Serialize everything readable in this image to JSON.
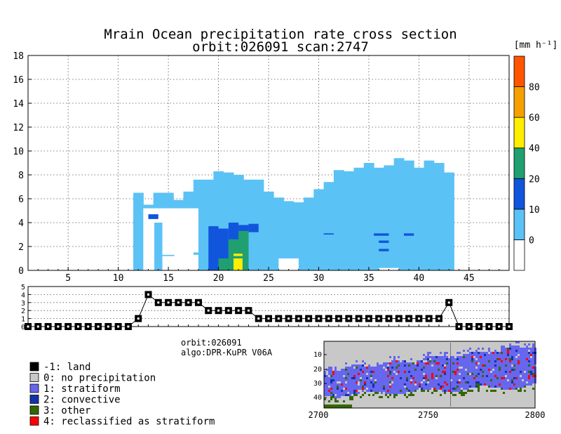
{
  "chart_data": [
    {
      "type": "heatmap",
      "title": "Mrain Ocean precipitation rate cross section",
      "subtitle": "orbit:026091     scan:2747",
      "xlim": [
        1,
        49
      ],
      "ylim": [
        0,
        18
      ],
      "xticks": [
        5,
        10,
        15,
        20,
        25,
        30,
        35,
        40,
        45
      ],
      "yticks": [
        0,
        2,
        4,
        6,
        8,
        10,
        12,
        14,
        16,
        18
      ],
      "grid": true,
      "colorbar": {
        "unit": "[mm h⁻¹]",
        "bins": [
          {
            "label": "0",
            "color": "#5bc2f5"
          },
          {
            "label": "10",
            "color": "#1155dd"
          },
          {
            "label": "20",
            "color": "#20a070"
          },
          {
            "label": "40",
            "color": "#ffee00"
          },
          {
            "label": "60",
            "color": "#f5a000"
          },
          {
            "label": "80",
            "color": "#ff5500"
          }
        ],
        "tick_labels": [
          "0",
          "10",
          "20",
          "40",
          "60",
          "80"
        ]
      },
      "columns": [
        {
          "x": 12,
          "top": 6.5
        },
        {
          "x": 13,
          "top": 5.5
        },
        {
          "x": 14,
          "top": 6.5
        },
        {
          "x": 15,
          "top": 6.5
        },
        {
          "x": 16,
          "top": 5.9
        },
        {
          "x": 17,
          "top": 6.6
        },
        {
          "x": 18,
          "top": 7.6
        },
        {
          "x": 19,
          "top": 7.6
        },
        {
          "x": 20,
          "top": 8.3
        },
        {
          "x": 21,
          "top": 8.2
        },
        {
          "x": 22,
          "top": 8.0
        },
        {
          "x": 23,
          "top": 7.6
        },
        {
          "x": 24,
          "top": 7.6
        },
        {
          "x": 25,
          "top": 6.6
        },
        {
          "x": 26,
          "top": 6.1
        },
        {
          "x": 27,
          "top": 5.8
        },
        {
          "x": 28,
          "top": 5.7
        },
        {
          "x": 29,
          "top": 6.1
        },
        {
          "x": 30,
          "top": 6.8
        },
        {
          "x": 31,
          "top": 7.4
        },
        {
          "x": 32,
          "top": 8.4
        },
        {
          "x": 33,
          "top": 8.3
        },
        {
          "x": 34,
          "top": 8.6
        },
        {
          "x": 35,
          "top": 9.0
        },
        {
          "x": 36,
          "top": 8.6
        },
        {
          "x": 37,
          "top": 8.8
        },
        {
          "x": 38,
          "top": 9.4
        },
        {
          "x": 39,
          "top": 9.2
        },
        {
          "x": 40,
          "top": 8.6
        },
        {
          "x": 41,
          "top": 9.2
        },
        {
          "x": 42,
          "top": 9.0
        },
        {
          "x": 43,
          "top": 8.2
        }
      ],
      "gaps": [
        {
          "x0": 12.5,
          "x1": 18,
          "y0": 0,
          "y1": 5.2
        },
        {
          "x0": 26,
          "x1": 28,
          "y0": 0,
          "y1": 1.0
        },
        {
          "x0": 36,
          "x1": 38,
          "y0": 0,
          "y1": 0.2
        }
      ],
      "cells": [
        {
          "x0": 19,
          "x1": 20,
          "y0": 0,
          "y1": 3.7,
          "bin": 1
        },
        {
          "x0": 20,
          "x1": 21,
          "y0": 0,
          "y1": 3.5,
          "bin": 1
        },
        {
          "x0": 21,
          "x1": 22,
          "y0": 0,
          "y1": 4.0,
          "bin": 1
        },
        {
          "x0": 22,
          "x1": 23,
          "y0": 0,
          "y1": 3.8,
          "bin": 1
        },
        {
          "x0": 23,
          "x1": 24,
          "y0": 3.2,
          "y1": 3.9,
          "bin": 1
        },
        {
          "x0": 20,
          "x1": 21,
          "y0": 0,
          "y1": 1.0,
          "bin": 2
        },
        {
          "x0": 21,
          "x1": 22,
          "y0": 0,
          "y1": 2.6,
          "bin": 2
        },
        {
          "x0": 22,
          "x1": 23,
          "y0": 0,
          "y1": 3.3,
          "bin": 2
        },
        {
          "x0": 21.5,
          "x1": 22.4,
          "y0": 0,
          "y1": 1.0,
          "bin": 3
        },
        {
          "x0": 21.5,
          "x1": 22.4,
          "y0": 1.2,
          "y1": 1.4,
          "bin": 3
        },
        {
          "x0": 13,
          "x1": 14,
          "y0": 4.3,
          "y1": 4.7,
          "bin": 1
        },
        {
          "x0": 30.5,
          "x1": 31.5,
          "y0": 3.0,
          "y1": 3.1,
          "bin": 1
        },
        {
          "x0": 35.5,
          "x1": 37,
          "y0": 2.9,
          "y1": 3.1,
          "bin": 1
        },
        {
          "x0": 38.5,
          "x1": 39.5,
          "y0": 2.9,
          "y1": 3.1,
          "bin": 1
        },
        {
          "x0": 36,
          "x1": 37,
          "y0": 2.3,
          "y1": 2.5,
          "bin": 1
        },
        {
          "x0": 36,
          "x1": 37,
          "y0": 1.6,
          "y1": 1.8,
          "bin": 1
        }
      ]
    },
    {
      "type": "line",
      "ylim": [
        0,
        5
      ],
      "yticks": [
        0,
        1,
        2,
        3,
        4,
        5
      ],
      "x": [
        1,
        2,
        3,
        4,
        5,
        6,
        7,
        8,
        9,
        10,
        11,
        12,
        13,
        14,
        15,
        16,
        17,
        18,
        19,
        20,
        21,
        22,
        23,
        24,
        25,
        26,
        27,
        28,
        29,
        30,
        31,
        32,
        33,
        34,
        35,
        36,
        37,
        38,
        39,
        40,
        41,
        42,
        43,
        44,
        45,
        46,
        47,
        48,
        49
      ],
      "values": [
        0,
        0,
        0,
        0,
        0,
        0,
        0,
        0,
        0,
        0,
        0,
        1,
        4,
        3,
        3,
        3,
        3,
        3,
        2,
        2,
        2,
        2,
        2,
        1,
        1,
        1,
        1,
        1,
        1,
        1,
        1,
        1,
        1,
        1,
        1,
        1,
        1,
        1,
        1,
        1,
        1,
        1,
        3,
        0,
        0,
        0,
        0,
        0,
        0
      ]
    },
    {
      "type": "heatmap",
      "xticks": [
        "2700",
        "2750",
        "2800"
      ],
      "yticks": [
        "10",
        "20",
        "30",
        "40"
      ]
    }
  ],
  "meta": {
    "orbit": "orbit:026091",
    "algo": "algo:DPR-KuPR V06A"
  },
  "legend": [
    {
      "label": "-1: land",
      "color": "#000000"
    },
    {
      "label": "0: no precipitation",
      "color": "#c8c8c8"
    },
    {
      "label": "1: stratiform",
      "color": "#6666ee"
    },
    {
      "label": "2: convective",
      "color": "#1133aa"
    },
    {
      "label": "3: other",
      "color": "#336600"
    },
    {
      "label": "4: reclassified as stratiform",
      "color": "#ff0000"
    }
  ]
}
